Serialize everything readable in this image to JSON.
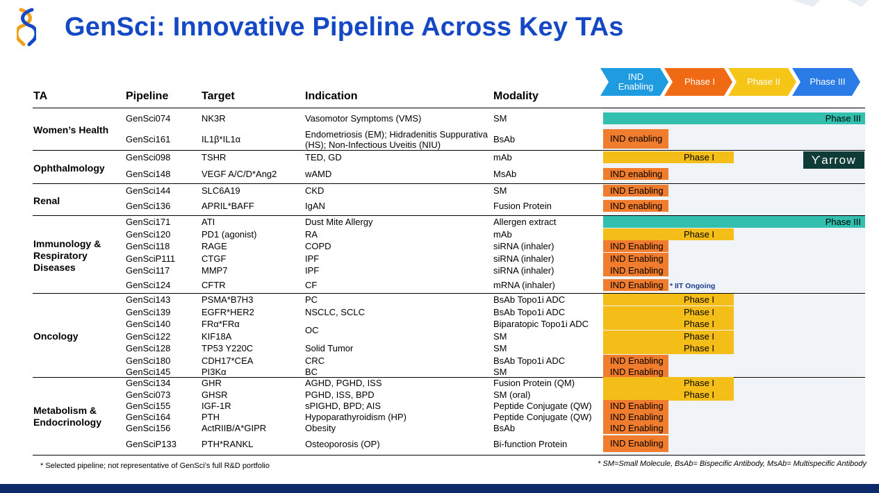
{
  "slide": {
    "title": "GenSci:  Innovative Pipeline Across Key TAs",
    "brand_color": "#1548c4",
    "footer_color": "#0d2a6b"
  },
  "headers": {
    "ta": "TA",
    "pipeline": "Pipeline",
    "target": "Target",
    "indication": "Indication",
    "modality": "Modality"
  },
  "phases": [
    {
      "label_line1": "IND",
      "label_line2": "Enabling",
      "color": "#1f9be0"
    },
    {
      "label_line1": "Phase I",
      "label_line2": "",
      "color": "#ef6a12"
    },
    {
      "label_line1": "Phase II",
      "label_line2": "",
      "color": "#f5c518"
    },
    {
      "label_line1": "Phase III",
      "label_line2": "",
      "color": "#2b7be6"
    }
  ],
  "therapeutic_areas": [
    {
      "name": "Women’s Health"
    },
    {
      "name": "Ophthalmology"
    },
    {
      "name": "Renal"
    },
    {
      "name_lines": [
        "Immunology &",
        "Respiratory",
        "Diseases"
      ]
    },
    {
      "name": "Oncology"
    },
    {
      "name_lines": [
        "Metabolism &",
        "Endocrinology"
      ]
    }
  ],
  "rows": [
    {
      "pipeline": "GenSci074",
      "target": "NK3R",
      "indication": "Vasomotor Symptoms (VMS)",
      "modality": "SM",
      "stage": "Phase III"
    },
    {
      "pipeline": "GenSci161",
      "target": "IL1β*IL1α",
      "indication": "Endometriosis (EM); Hidradenitis Suppurativa",
      "indication_line2": "(HS); Non-Infectious Uveitis (NIU)",
      "modality": "BsAb",
      "stage": "IND enabling"
    },
    {
      "pipeline": "GenSci098",
      "target": "TSHR",
      "indication": "TED, GD",
      "modality": "mAb",
      "stage": "Phase I"
    },
    {
      "pipeline": "GenSci148",
      "target": "VEGF A/C/D*Ang2",
      "indication": "wAMD",
      "modality": "MsAb",
      "stage": "IND enabling"
    },
    {
      "pipeline": "GenSci144",
      "target": "SLC6A19",
      "indication": "CKD",
      "modality": "SM",
      "stage": "IND Enabling"
    },
    {
      "pipeline": "GenSci136",
      "target": "APRIL*BAFF",
      "indication": "IgAN",
      "modality": "Fusion Protein",
      "stage": "IND enabling"
    },
    {
      "pipeline": "GenSci171",
      "target": "ATI",
      "indication": "Dust Mite Allergy",
      "modality": "Allergen extract",
      "stage": "Phase III"
    },
    {
      "pipeline": "GenSci120",
      "target": "PD1 (agonist)",
      "indication": "RA",
      "modality": "mAb",
      "stage": "Phase I"
    },
    {
      "pipeline": "GenSci118",
      "target": "RAGE",
      "indication": "COPD",
      "modality": "siRNA (inhaler)",
      "stage": "IND Enabling"
    },
    {
      "pipeline": "GenSciP111",
      "target": "CTGF",
      "indication": "IPF",
      "modality": "siRNA (inhaler)",
      "stage": "IND Enabling"
    },
    {
      "pipeline": "GenSci117",
      "target": "MMP7",
      "indication": "IPF",
      "modality": "siRNA (inhaler)",
      "stage": "IND Enabling"
    },
    {
      "pipeline": "GenSci124",
      "target": "CFTR",
      "indication": "CF",
      "modality": "mRNA (inhaler)",
      "stage": "IND Enabling",
      "note": "* IIT Ongoing"
    },
    {
      "pipeline": "GenSci143",
      "target": "PSMA*B7H3",
      "indication": "PC",
      "modality": "BsAb Topo1i ADC",
      "stage": "Phase I"
    },
    {
      "pipeline": "GenSci139",
      "target": "EGFR*HER2",
      "indication": "NSCLC, SCLC",
      "modality": "BsAb Topo1i ADC",
      "stage": "Phase I"
    },
    {
      "pipeline": "GenSci140",
      "target": "FRα*FRα",
      "indication": "OC",
      "modality": "Biparatopic Topo1i ADC",
      "stage": "Phase I"
    },
    {
      "pipeline": "GenSci122",
      "target": "KIF18A",
      "indication": "",
      "modality": "SM",
      "stage": "Phase I"
    },
    {
      "pipeline": "GenSci128",
      "target": "TP53 Y220C",
      "indication": "Solid Tumor",
      "modality": "SM",
      "stage": "Phase I"
    },
    {
      "pipeline": "GenSci180",
      "target": "CDH17*CEA",
      "indication": "CRC",
      "modality": "BsAb Topo1i ADC",
      "stage": "IND Enabling"
    },
    {
      "pipeline": "GenSci145",
      "target": "PI3Kα",
      "indication": "BC",
      "modality": "SM",
      "stage": "IND Enabling"
    },
    {
      "pipeline": "GenSci134",
      "target": "GHR",
      "indication": "AGHD, PGHD, ISS",
      "modality": "Fusion Protein (QM)",
      "stage": "Phase I"
    },
    {
      "pipeline": "GenSci073",
      "target": "GHSR",
      "indication": "PGHD, ISS, BPD",
      "modality": "SM (oral)",
      "stage": "Phase I"
    },
    {
      "pipeline": "GenSci155",
      "target": "IGF-1R",
      "indication": "sPIGHD, BPD; AIS",
      "modality": "Peptide Conjugate (QW)",
      "stage": "IND Enabling"
    },
    {
      "pipeline": "GenSci164",
      "target": "PTH",
      "indication": "Hypoparathyroidism (HP)",
      "modality": "Peptide Conjugate (QW)",
      "stage": "IND Enabling"
    },
    {
      "pipeline": "GenSci156",
      "target": "ActRIIB/A*GIPR",
      "indication": "Obesity",
      "modality": "BsAb",
      "stage": "IND Enabling"
    },
    {
      "pipeline": "GenSciP133",
      "target": "PTH*RANKL",
      "indication": "Osteoporosis (OP)",
      "modality": "Bi-function Protein",
      "stage": "IND Enabling"
    }
  ],
  "partner_logo": {
    "text": "ϒarrow",
    "color": "#0e3b35"
  },
  "footnotes": {
    "left": "* Selected pipeline; not representative of GenSci’s full R&D portfolio",
    "right": "* SM=Small Molecule, BsAb= Bispecific Antibody,  MsAb= Multispecific Antibody"
  },
  "stage_colors": {
    "ind": "#f07c2e",
    "phase1": "#f5bd18",
    "phase3": "#33bfae"
  }
}
